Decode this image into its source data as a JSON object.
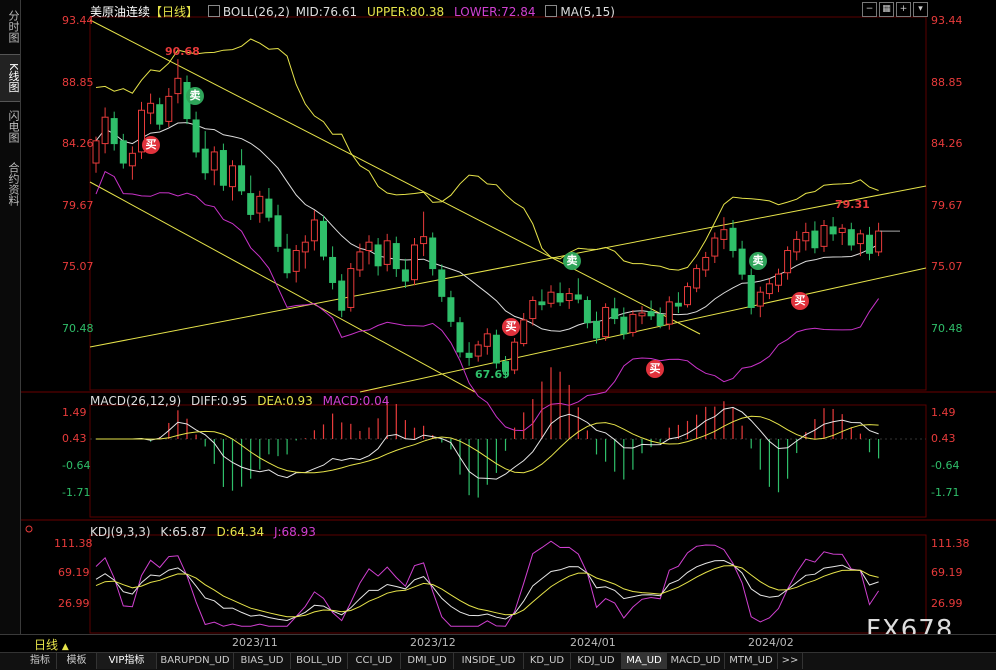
{
  "side_tabs": [
    "分时图",
    "K线图",
    "闪电图",
    "合约资料"
  ],
  "header": {
    "title": "美原油连续",
    "period": "【日线】",
    "boll_label": "BOLL(26,2)",
    "mid": "MID:76.61",
    "upper": "UPPER:80.38",
    "lower": "LOWER:72.84",
    "ma": "MA(5,15)"
  },
  "macd_header": {
    "name": "MACD(26,12,9)",
    "diff": "DIFF:0.95",
    "dea": "DEA:0.93",
    "macd": "MACD:0.04"
  },
  "kdj_header": {
    "name": "KDJ(9,3,3)",
    "k": "K:65.87",
    "d": "D:64.34",
    "j": "J:68.93"
  },
  "price_axis": [
    "93.44",
    "88.85",
    "84.26",
    "79.67",
    "75.07",
    "70.48"
  ],
  "macd_axis": [
    "1.49",
    "0.43",
    "-0.64",
    "-1.71"
  ],
  "kdj_axis": [
    "111.38",
    "69.19",
    "26.99"
  ],
  "markers": {
    "high": "90.68",
    "low": "67.69",
    "recent_high": "79.31"
  },
  "signals": {
    "buy": "买",
    "sell": "卖"
  },
  "x_labels": [
    "2023/11",
    "2023/12",
    "2024/01",
    "2024/02"
  ],
  "period_button": "日线",
  "bottom_tabs": [
    "指标",
    "模板",
    "VIP指标",
    "BARUPDN_UD",
    "BIAS_UD",
    "BOLL_UD",
    "CCI_UD",
    "DMI_UD",
    "INSIDE_UD",
    "KD_UD",
    "KDJ_UD",
    "MA_UD",
    "MACD_UD",
    "MTM_UD",
    ">>"
  ],
  "watermark": "FX678",
  "colors": {
    "up": "#e83b3b",
    "down": "#2fbf6a",
    "upper": "#e6e34a",
    "mid": "#dcdcdc",
    "lower": "#c832c8",
    "dea": "#e6e34a",
    "diff": "#e6e6e6",
    "k": "#e6e6e6",
    "d": "#e6e34a",
    "j": "#d040d0",
    "trend": "#e6e34a"
  },
  "chart_data": {
    "type": "candlestick",
    "price_range": [
      67.0,
      93.5
    ],
    "candles": [
      [
        83.2,
        85.1,
        82.5,
        84.8
      ],
      [
        84.6,
        87.2,
        83.9,
        86.5
      ],
      [
        86.4,
        86.9,
        84.1,
        84.6
      ],
      [
        84.8,
        85.3,
        82.8,
        83.2
      ],
      [
        83.0,
        84.4,
        82.0,
        83.9
      ],
      [
        84.0,
        87.6,
        83.5,
        87.0
      ],
      [
        86.8,
        88.2,
        86.0,
        87.5
      ],
      [
        87.4,
        87.9,
        85.6,
        86.0
      ],
      [
        86.2,
        88.6,
        85.8,
        88.0
      ],
      [
        88.2,
        90.68,
        87.5,
        89.3
      ],
      [
        89.0,
        89.5,
        86.0,
        86.4
      ],
      [
        86.3,
        86.9,
        83.6,
        84.0
      ],
      [
        84.2,
        85.5,
        82.0,
        82.5
      ],
      [
        82.7,
        84.4,
        81.6,
        84.0
      ],
      [
        84.1,
        84.6,
        81.2,
        81.6
      ],
      [
        81.5,
        83.4,
        80.5,
        83.0
      ],
      [
        83.0,
        84.2,
        80.9,
        81.2
      ],
      [
        81.0,
        82.3,
        79.1,
        79.5
      ],
      [
        79.6,
        81.2,
        78.9,
        80.8
      ],
      [
        80.6,
        81.4,
        79.0,
        79.3
      ],
      [
        79.4,
        80.2,
        76.8,
        77.2
      ],
      [
        77.0,
        78.1,
        74.9,
        75.3
      ],
      [
        75.4,
        77.3,
        74.6,
        76.9
      ],
      [
        76.8,
        78.0,
        75.6,
        77.5
      ],
      [
        77.6,
        79.8,
        76.9,
        79.1
      ],
      [
        79.0,
        79.4,
        76.2,
        76.5
      ],
      [
        76.4,
        77.2,
        74.1,
        74.6
      ],
      [
        74.7,
        75.2,
        72.1,
        72.6
      ],
      [
        72.8,
        76.0,
        72.5,
        75.6
      ],
      [
        75.5,
        77.4,
        75.0,
        76.8
      ],
      [
        76.9,
        78.0,
        75.9,
        77.5
      ],
      [
        77.3,
        77.8,
        75.1,
        75.8
      ],
      [
        75.9,
        78.1,
        75.4,
        77.6
      ],
      [
        77.4,
        77.9,
        75.0,
        75.6
      ],
      [
        75.5,
        76.3,
        74.2,
        74.7
      ],
      [
        74.8,
        77.8,
        74.4,
        77.3
      ],
      [
        77.4,
        79.7,
        76.5,
        77.9
      ],
      [
        77.8,
        78.2,
        75.1,
        75.6
      ],
      [
        75.5,
        75.9,
        73.2,
        73.6
      ],
      [
        73.5,
        74.0,
        71.4,
        71.8
      ],
      [
        71.7,
        72.1,
        69.2,
        69.6
      ],
      [
        69.5,
        70.3,
        68.6,
        69.2
      ],
      [
        69.3,
        70.4,
        68.9,
        70.1
      ],
      [
        70.0,
        71.3,
        69.4,
        70.9
      ],
      [
        70.8,
        71.2,
        68.4,
        68.8
      ],
      [
        68.9,
        69.3,
        67.69,
        68.2
      ],
      [
        68.3,
        70.6,
        68.0,
        70.3
      ],
      [
        70.2,
        72.4,
        70.0,
        71.9
      ],
      [
        72.0,
        73.6,
        71.5,
        73.3
      ],
      [
        73.2,
        74.1,
        72.6,
        73.0
      ],
      [
        73.1,
        74.4,
        72.8,
        73.9
      ],
      [
        73.8,
        74.6,
        72.9,
        73.2
      ],
      [
        73.3,
        74.2,
        72.7,
        73.8
      ],
      [
        73.7,
        74.9,
        73.1,
        73.4
      ],
      [
        73.3,
        73.6,
        71.3,
        71.7
      ],
      [
        71.8,
        72.5,
        70.2,
        70.6
      ],
      [
        70.7,
        73.1,
        70.4,
        72.8
      ],
      [
        72.7,
        73.5,
        71.6,
        72.0
      ],
      [
        72.1,
        72.8,
        70.5,
        70.9
      ],
      [
        71.0,
        72.6,
        70.7,
        72.3
      ],
      [
        72.2,
        72.9,
        71.6,
        72.4
      ],
      [
        72.5,
        73.3,
        71.9,
        72.2
      ],
      [
        72.3,
        72.8,
        71.3,
        71.5
      ],
      [
        71.6,
        73.6,
        71.2,
        73.2
      ],
      [
        73.1,
        73.9,
        72.4,
        72.9
      ],
      [
        73.0,
        74.6,
        72.8,
        74.3
      ],
      [
        74.2,
        75.9,
        73.9,
        75.6
      ],
      [
        75.5,
        76.8,
        75.0,
        76.4
      ],
      [
        76.5,
        78.2,
        76.0,
        77.8
      ],
      [
        77.7,
        79.3,
        77.0,
        78.4
      ],
      [
        78.5,
        79.1,
        76.4,
        76.9
      ],
      [
        77.0,
        77.6,
        74.8,
        75.2
      ],
      [
        75.1,
        75.6,
        72.3,
        72.8
      ],
      [
        72.9,
        74.3,
        72.1,
        73.9
      ],
      [
        73.8,
        74.9,
        73.4,
        74.5
      ],
      [
        74.4,
        75.6,
        73.9,
        75.2
      ],
      [
        75.3,
        77.2,
        74.8,
        76.9
      ],
      [
        76.8,
        78.3,
        76.2,
        77.7
      ],
      [
        77.6,
        78.9,
        76.9,
        78.2
      ],
      [
        78.3,
        79.0,
        76.7,
        77.1
      ],
      [
        77.2,
        79.1,
        76.8,
        78.7
      ],
      [
        78.6,
        79.31,
        77.6,
        78.1
      ],
      [
        78.2,
        78.8,
        77.3,
        78.5
      ],
      [
        78.4,
        78.9,
        76.9,
        77.3
      ],
      [
        77.4,
        78.4,
        76.5,
        78.1
      ],
      [
        78.0,
        78.6,
        76.2,
        76.7
      ],
      [
        76.8,
        78.9,
        76.5,
        78.3
      ]
    ]
  }
}
